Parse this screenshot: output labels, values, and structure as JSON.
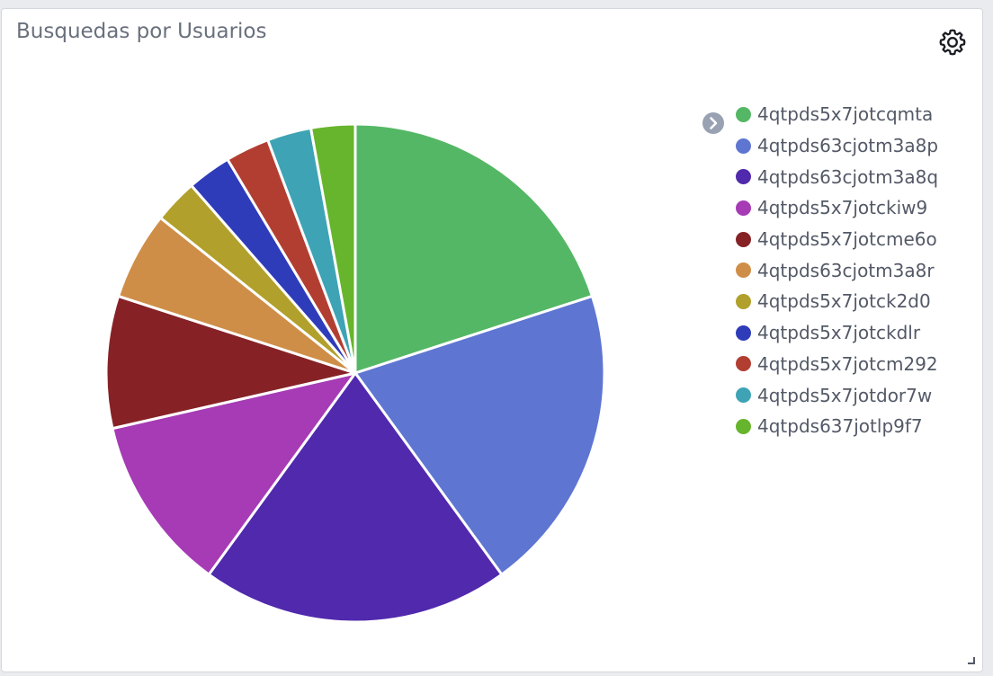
{
  "panel": {
    "title": "Busquedas por Usuarios",
    "settings_icon": "gear-icon",
    "legend_toggle_icon": "chevron-right-circle-icon",
    "resize_icon": "resize-corner-icon"
  },
  "chart_data": {
    "type": "pie",
    "title": "Busquedas por Usuarios",
    "legend_position": "right",
    "labels": [
      "4qtpds5x7jotcqmta",
      "4qtpds63cjotm3a8p",
      "4qtpds63cjotm3a8q",
      "4qtpds5x7jotckiw9",
      "4qtpds5x7jotcme6o",
      "4qtpds63cjotm3a8r",
      "4qtpds5x7jotck2d0",
      "4qtpds5x7jotckdlr",
      "4qtpds5x7jotcm292",
      "4qtpds5x7jotdor7w",
      "4qtpds637jotlp9f7"
    ],
    "values": [
      7,
      7,
      7,
      4,
      3,
      2,
      1,
      1,
      1,
      1,
      1
    ],
    "colors": [
      "#54b765",
      "#5e76d2",
      "#5029ad",
      "#a63bb5",
      "#862226",
      "#cf8e47",
      "#b1a02b",
      "#2f3cb9",
      "#b23e32",
      "#3ea3b5",
      "#67b52c"
    ]
  }
}
